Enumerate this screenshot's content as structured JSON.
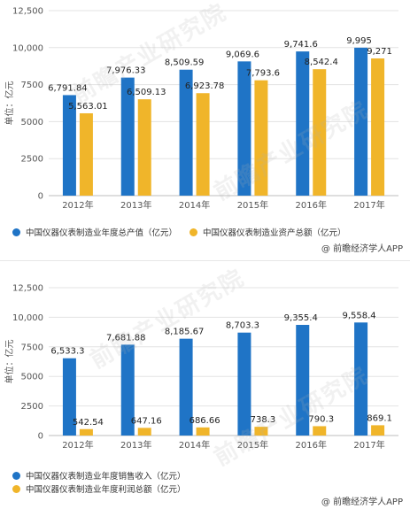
{
  "colors": {
    "series1": "#1f74c6",
    "series2": "#f0b52a",
    "grid": "#e3e3e3",
    "axis": "#bdbdbd"
  },
  "chart_data": [
    {
      "type": "bar",
      "ylabel": "单位：亿元",
      "ylim": [
        0,
        12500
      ],
      "yticks": [
        "0",
        "2500",
        "5000",
        "7500",
        "10,000",
        "12,500"
      ],
      "categories": [
        "2012年",
        "2013年",
        "2014年",
        "2015年",
        "2016年",
        "2017年"
      ],
      "series": [
        {
          "name": "中国仪器仪表制造业年度总产值（亿元）",
          "values": [
            6791.84,
            7976.33,
            8509.59,
            9069.6,
            9741.6,
            9995
          ],
          "labels": [
            "6,791.84",
            "7,976.33",
            "8,509.59",
            "9,069.6",
            "9,741.6",
            "9,995"
          ]
        },
        {
          "name": "中国仪器仪表制造业资产总额（亿元）",
          "values": [
            5563.01,
            6509.13,
            6923.78,
            7793.6,
            8542.4,
            9271
          ],
          "labels": [
            "5,563.01",
            "6,509.13",
            "6,923.78",
            "7,793.6",
            "8,542.4",
            "9,271"
          ]
        }
      ],
      "grid": true,
      "legend": "bottom",
      "source": "@ 前瞻经济学人APP",
      "watermark": "前瞻产业研究院"
    },
    {
      "type": "bar",
      "ylabel": "单位：亿元",
      "ylim": [
        0,
        12500
      ],
      "yticks": [
        "0",
        "2500",
        "5000",
        "7500",
        "10,000",
        "12,500"
      ],
      "categories": [
        "2012年",
        "2013年",
        "2014年",
        "2015年",
        "2016年",
        "2017年"
      ],
      "series": [
        {
          "name": "中国仪器仪表制造业年度销售收入（亿元）",
          "values": [
            6533.3,
            7681.88,
            8185.67,
            8703.3,
            9355.4,
            9558.4
          ],
          "labels": [
            "6,533.3",
            "7,681.88",
            "8,185.67",
            "8,703.3",
            "9,355.4",
            "9,558.4"
          ]
        },
        {
          "name": "中国仪器仪表制造业年度利润总额（亿元）",
          "values": [
            542.54,
            647.16,
            686.66,
            738.3,
            790.3,
            869.1
          ],
          "labels": [
            "542.54",
            "647.16",
            "686.66",
            "738.3",
            "790.3",
            "869.1"
          ]
        }
      ],
      "grid": true,
      "legend": "bottom",
      "source": "@ 前瞻经济学人APP",
      "watermark": "前瞻产业研究院"
    }
  ]
}
